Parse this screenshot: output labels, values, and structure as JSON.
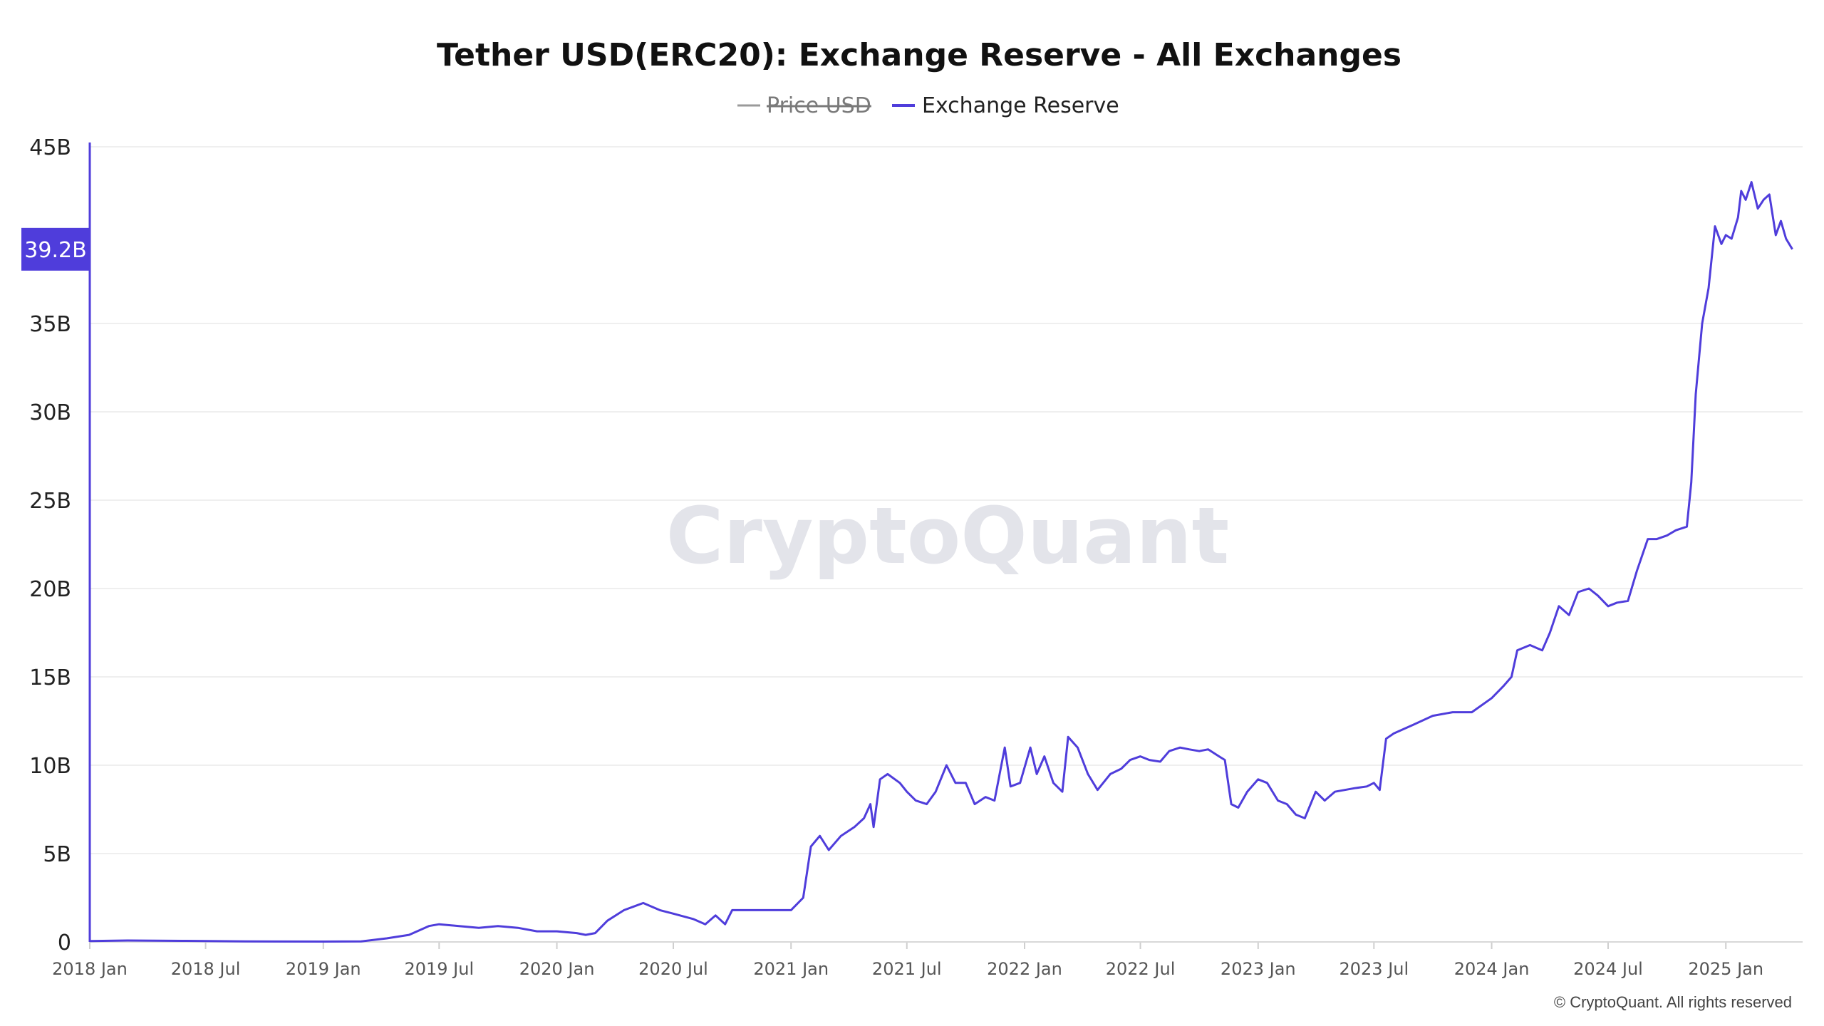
{
  "chart_data": {
    "type": "line",
    "title": "Tether USD(ERC20): Exchange Reserve - All Exchanges",
    "legend": [
      {
        "name": "Price USD",
        "color": "#9a9a9a",
        "hidden": true
      },
      {
        "name": "Exchange Reserve",
        "color": "#4f3ddb",
        "hidden": false
      }
    ],
    "y_ticks": [
      "0",
      "5B",
      "10B",
      "15B",
      "20B",
      "25B",
      "30B",
      "35B",
      "45B"
    ],
    "y_tick_values": [
      0,
      5,
      10,
      15,
      20,
      25,
      30,
      35,
      45
    ],
    "ylim": [
      0,
      45
    ],
    "y_unit": "B",
    "current_value_label": "39.2B",
    "current_value": 39.2,
    "x_ticks": [
      "2018 Jan",
      "2018 Jul",
      "2019 Jan",
      "2019 Jul",
      "2020 Jan",
      "2020 Jul",
      "2021 Jan",
      "2021 Jul",
      "2022 Jan",
      "2022 Jul",
      "2023 Jan",
      "2023 Jul",
      "2024 Jan",
      "2024 Jul",
      "2025 Jan"
    ],
    "x_tick_values": [
      "2018-01-01",
      "2018-07-01",
      "2019-01-01",
      "2019-07-01",
      "2020-01-01",
      "2020-07-01",
      "2021-01-01",
      "2021-07-01",
      "2022-01-01",
      "2022-07-01",
      "2023-01-01",
      "2023-07-01",
      "2024-01-01",
      "2024-07-01",
      "2025-01-01"
    ],
    "xlim": [
      "2018-01-01",
      "2025-05-01"
    ],
    "grid": true,
    "legend_position": "top-center",
    "series": [
      {
        "name": "Exchange Reserve",
        "color": "#4f3ddb",
        "points": [
          [
            "2018-01-01",
            0.05
          ],
          [
            "2018-03-01",
            0.08
          ],
          [
            "2018-06-01",
            0.06
          ],
          [
            "2018-09-01",
            0.03
          ],
          [
            "2019-01-01",
            0.02
          ],
          [
            "2019-03-01",
            0.03
          ],
          [
            "2019-04-10",
            0.2
          ],
          [
            "2019-05-15",
            0.4
          ],
          [
            "2019-06-15",
            0.9
          ],
          [
            "2019-07-01",
            1.0
          ],
          [
            "2019-08-01",
            0.9
          ],
          [
            "2019-09-01",
            0.8
          ],
          [
            "2019-10-01",
            0.9
          ],
          [
            "2019-11-01",
            0.8
          ],
          [
            "2019-12-01",
            0.6
          ],
          [
            "2020-01-01",
            0.6
          ],
          [
            "2020-02-01",
            0.5
          ],
          [
            "2020-02-15",
            0.4
          ],
          [
            "2020-03-01",
            0.5
          ],
          [
            "2020-03-20",
            1.2
          ],
          [
            "2020-04-15",
            1.8
          ],
          [
            "2020-05-15",
            2.2
          ],
          [
            "2020-06-10",
            1.8
          ],
          [
            "2020-07-01",
            1.6
          ],
          [
            "2020-08-01",
            1.3
          ],
          [
            "2020-08-20",
            1.0
          ],
          [
            "2020-09-05",
            1.5
          ],
          [
            "2020-09-20",
            1.0
          ],
          [
            "2020-10-01",
            1.8
          ],
          [
            "2020-11-01",
            1.8
          ],
          [
            "2020-12-01",
            1.8
          ],
          [
            "2021-01-01",
            1.8
          ],
          [
            "2021-01-20",
            2.5
          ],
          [
            "2021-02-01",
            5.4
          ],
          [
            "2021-02-15",
            6.0
          ],
          [
            "2021-03-01",
            5.2
          ],
          [
            "2021-03-20",
            6.0
          ],
          [
            "2021-04-10",
            6.5
          ],
          [
            "2021-04-25",
            7.0
          ],
          [
            "2021-05-05",
            7.8
          ],
          [
            "2021-05-10",
            6.5
          ],
          [
            "2021-05-20",
            9.2
          ],
          [
            "2021-06-01",
            9.5
          ],
          [
            "2021-06-20",
            9.0
          ],
          [
            "2021-07-01",
            8.5
          ],
          [
            "2021-07-15",
            8.0
          ],
          [
            "2021-08-01",
            7.8
          ],
          [
            "2021-08-15",
            8.5
          ],
          [
            "2021-09-01",
            10.0
          ],
          [
            "2021-09-15",
            9.0
          ],
          [
            "2021-10-01",
            9.0
          ],
          [
            "2021-10-15",
            7.8
          ],
          [
            "2021-11-01",
            8.2
          ],
          [
            "2021-11-15",
            8.0
          ],
          [
            "2021-12-01",
            11.0
          ],
          [
            "2021-12-10",
            8.8
          ],
          [
            "2021-12-25",
            9.0
          ],
          [
            "2022-01-10",
            11.0
          ],
          [
            "2022-01-20",
            9.5
          ],
          [
            "2022-02-01",
            10.5
          ],
          [
            "2022-02-15",
            9.0
          ],
          [
            "2022-03-01",
            8.5
          ],
          [
            "2022-03-10",
            11.6
          ],
          [
            "2022-03-25",
            11.0
          ],
          [
            "2022-04-10",
            9.5
          ],
          [
            "2022-04-25",
            8.6
          ],
          [
            "2022-05-15",
            9.5
          ],
          [
            "2022-06-01",
            9.8
          ],
          [
            "2022-06-15",
            10.3
          ],
          [
            "2022-07-01",
            10.5
          ],
          [
            "2022-07-15",
            10.3
          ],
          [
            "2022-08-01",
            10.2
          ],
          [
            "2022-08-15",
            10.8
          ],
          [
            "2022-09-01",
            11.0
          ],
          [
            "2022-09-15",
            10.9
          ],
          [
            "2022-10-01",
            10.8
          ],
          [
            "2022-10-15",
            10.9
          ],
          [
            "2022-11-01",
            10.5
          ],
          [
            "2022-11-10",
            10.3
          ],
          [
            "2022-11-20",
            7.8
          ],
          [
            "2022-12-01",
            7.6
          ],
          [
            "2022-12-15",
            8.5
          ],
          [
            "2023-01-01",
            9.2
          ],
          [
            "2023-01-15",
            9.0
          ],
          [
            "2023-02-01",
            8.0
          ],
          [
            "2023-02-15",
            7.8
          ],
          [
            "2023-03-01",
            7.2
          ],
          [
            "2023-03-15",
            7.0
          ],
          [
            "2023-04-01",
            8.5
          ],
          [
            "2023-04-15",
            8.0
          ],
          [
            "2023-05-01",
            8.5
          ],
          [
            "2023-06-01",
            8.7
          ],
          [
            "2023-06-20",
            8.8
          ],
          [
            "2023-07-01",
            9.0
          ],
          [
            "2023-07-10",
            8.6
          ],
          [
            "2023-07-20",
            11.5
          ],
          [
            "2023-08-01",
            11.8
          ],
          [
            "2023-09-01",
            12.3
          ],
          [
            "2023-10-01",
            12.8
          ],
          [
            "2023-11-01",
            13.0
          ],
          [
            "2023-12-01",
            13.0
          ],
          [
            "2024-01-01",
            13.8
          ],
          [
            "2024-01-20",
            14.5
          ],
          [
            "2024-02-01",
            15.0
          ],
          [
            "2024-02-10",
            16.5
          ],
          [
            "2024-03-01",
            16.8
          ],
          [
            "2024-03-20",
            16.5
          ],
          [
            "2024-04-01",
            17.5
          ],
          [
            "2024-04-15",
            19.0
          ],
          [
            "2024-05-01",
            18.5
          ],
          [
            "2024-05-15",
            19.8
          ],
          [
            "2024-06-01",
            20.0
          ],
          [
            "2024-06-15",
            19.6
          ],
          [
            "2024-07-01",
            19.0
          ],
          [
            "2024-07-15",
            19.2
          ],
          [
            "2024-08-01",
            19.3
          ],
          [
            "2024-08-15",
            21.0
          ],
          [
            "2024-09-01",
            22.8
          ],
          [
            "2024-09-15",
            22.8
          ],
          [
            "2024-10-01",
            23.0
          ],
          [
            "2024-10-15",
            23.3
          ],
          [
            "2024-11-01",
            23.5
          ],
          [
            "2024-11-08",
            26.0
          ],
          [
            "2024-11-15",
            31.0
          ],
          [
            "2024-11-25",
            35.0
          ],
          [
            "2024-12-05",
            37.0
          ],
          [
            "2024-12-15",
            40.5
          ],
          [
            "2024-12-25",
            39.5
          ],
          [
            "2025-01-01",
            40.0
          ],
          [
            "2025-01-10",
            39.8
          ],
          [
            "2025-01-20",
            41.0
          ],
          [
            "2025-01-25",
            42.5
          ],
          [
            "2025-02-01",
            42.0
          ],
          [
            "2025-02-10",
            43.0
          ],
          [
            "2025-02-20",
            41.5
          ],
          [
            "2025-03-01",
            42.0
          ],
          [
            "2025-03-10",
            42.3
          ],
          [
            "2025-03-20",
            40.0
          ],
          [
            "2025-03-28",
            40.8
          ],
          [
            "2025-04-05",
            39.8
          ],
          [
            "2025-04-15",
            39.2
          ]
        ]
      }
    ]
  },
  "watermark": "CryptoQuant",
  "copyright": "© CryptoQuant. All rights reserved"
}
